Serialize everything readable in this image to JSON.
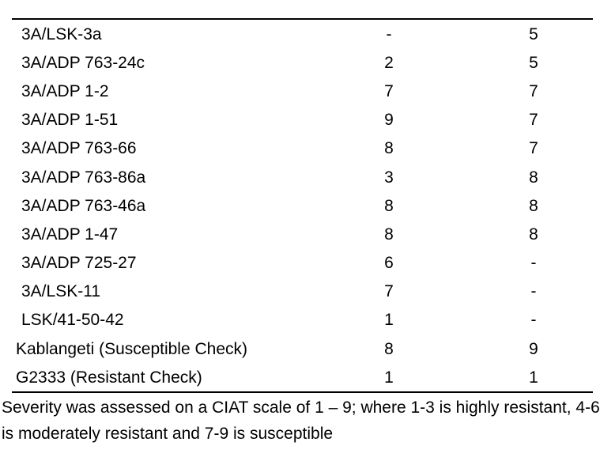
{
  "colors": {
    "background": "#ffffff",
    "text": "#000000",
    "rule": "#000000"
  },
  "table": {
    "rows": [
      [
        "3A/LSK-3a",
        "-",
        "5"
      ],
      [
        "3A/ADP 763-24c",
        "2",
        "5"
      ],
      [
        "3A/ADP 1-2",
        "7",
        "7"
      ],
      [
        "3A/ADP 1-51",
        "9",
        "7"
      ],
      [
        "3A/ADP 763-66",
        "8",
        "7"
      ],
      [
        "3A/ADP 763-86a",
        "3",
        "8"
      ],
      [
        "3A/ADP 763-46a",
        "8",
        "8"
      ],
      [
        "3A/ADP 1-47",
        "8",
        "8"
      ],
      [
        "3A/ADP 725-27",
        "6",
        "-"
      ],
      [
        "3A/LSK-11",
        "7",
        "-"
      ],
      [
        "LSK/41-50-42",
        "1",
        "-"
      ],
      [
        "Kablangeti (Susceptible Check)",
        "8",
        "9"
      ],
      [
        "G2333 (Resistant Check)",
        "1",
        "1"
      ]
    ]
  },
  "footnote": {
    "line1": "Severity was assessed on a CIAT scale of 1 – 9; where 1-3 is highly resistant, 4-6",
    "line2": "is moderately resistant and 7-9 is susceptible"
  }
}
